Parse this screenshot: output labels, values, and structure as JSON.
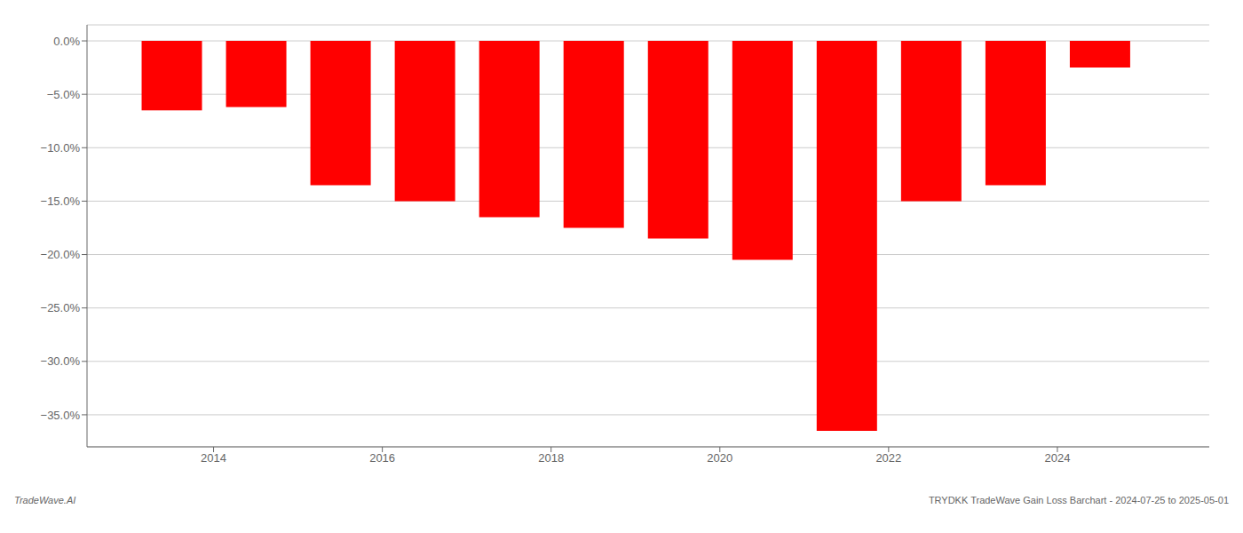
{
  "chart_data": {
    "type": "bar",
    "x": [
      2013.5,
      2014.5,
      2015.5,
      2016.5,
      2017.5,
      2018.5,
      2019.5,
      2020.5,
      2021.5,
      2022.5,
      2023.5,
      2024.5
    ],
    "values": [
      -6.5,
      -6.2,
      -13.5,
      -15.0,
      -16.5,
      -17.5,
      -18.5,
      -20.5,
      -36.5,
      -15.0,
      -13.5,
      -2.5
    ],
    "color": "#ff0000",
    "xlim": [
      2012.5,
      2025.8
    ],
    "xticks": [
      2014,
      2016,
      2018,
      2020,
      2022,
      2024
    ],
    "ylim": [
      -38.0,
      1.5
    ],
    "yticks": [
      {
        "value": 0.0,
        "label": "0.0%"
      },
      {
        "value": -5.0,
        "label": "−5.0%"
      },
      {
        "value": -10.0,
        "label": "−10.0%"
      },
      {
        "value": -15.0,
        "label": "−15.0%"
      },
      {
        "value": -20.0,
        "label": "−20.0%"
      },
      {
        "value": -25.0,
        "label": "−25.0%"
      },
      {
        "value": -30.0,
        "label": "−30.0%"
      },
      {
        "value": -35.0,
        "label": "−35.0%"
      }
    ],
    "grid": true,
    "annotations": [
      "TradeWave.AI",
      "TRYDKK TradeWave Gain Loss Barchart - 2024-07-25 to 2025-05-01"
    ]
  }
}
